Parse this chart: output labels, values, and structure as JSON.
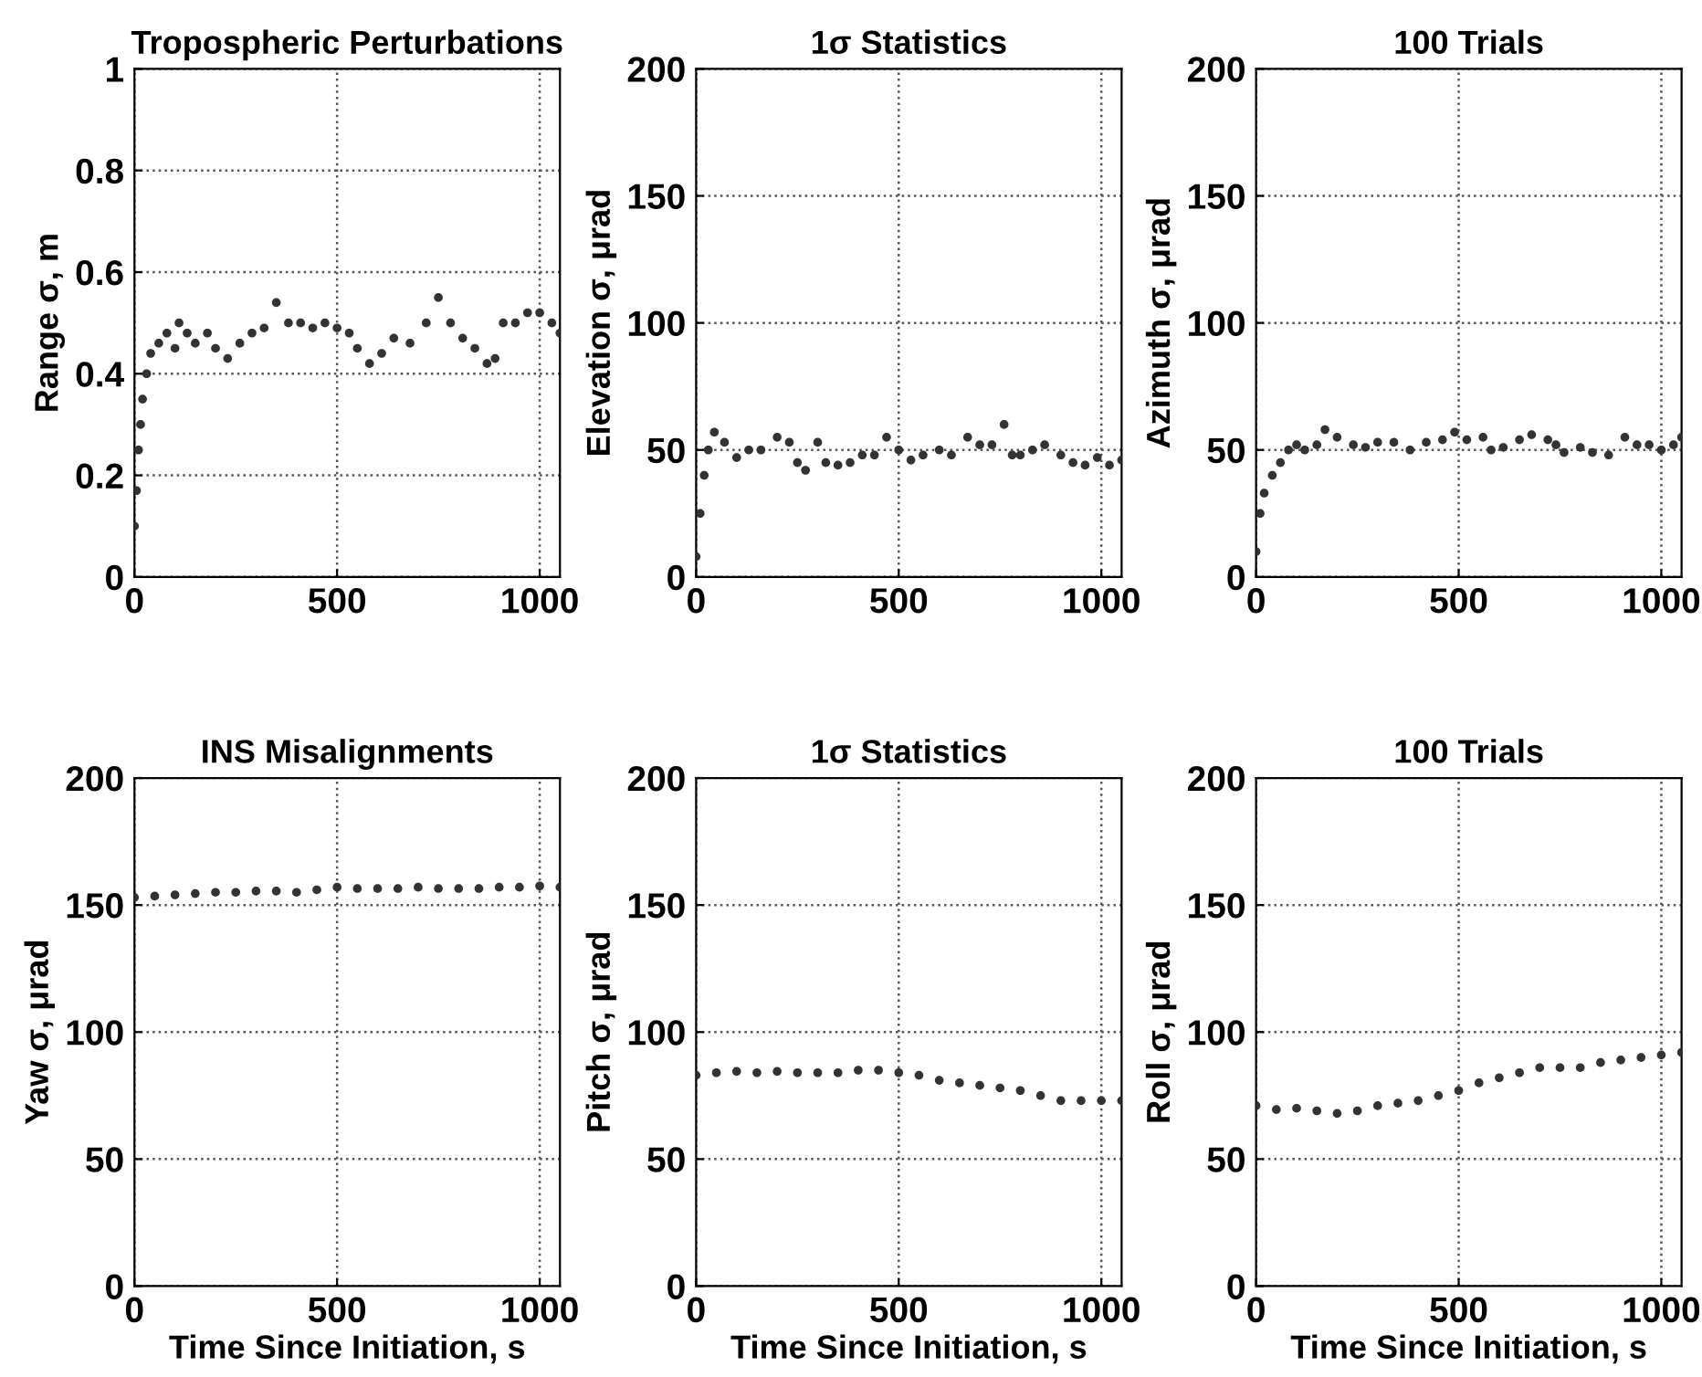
{
  "chart_data": [
    {
      "type": "scatter",
      "title": "Tropospheric Perturbations",
      "ylabel": "Range σ, m",
      "color": "#333333",
      "marker": "circle",
      "grid": true,
      "xlim": [
        0,
        1050
      ],
      "xticks": [
        0,
        500,
        1000
      ],
      "ylim": [
        0,
        1
      ],
      "yticks": [
        0,
        0.2,
        0.4,
        0.6,
        0.8,
        1
      ],
      "x": [
        0,
        5,
        10,
        15,
        20,
        30,
        40,
        60,
        80,
        100,
        110,
        130,
        150,
        180,
        200,
        230,
        260,
        290,
        320,
        350,
        380,
        410,
        440,
        470,
        500,
        530,
        550,
        580,
        610,
        640,
        680,
        720,
        750,
        780,
        810,
        840,
        870,
        890,
        910,
        940,
        970,
        1000,
        1030,
        1050
      ],
      "values": [
        0.1,
        0.17,
        0.25,
        0.3,
        0.35,
        0.4,
        0.44,
        0.46,
        0.48,
        0.45,
        0.5,
        0.48,
        0.46,
        0.48,
        0.45,
        0.43,
        0.46,
        0.48,
        0.49,
        0.54,
        0.5,
        0.5,
        0.49,
        0.5,
        0.49,
        0.48,
        0.45,
        0.42,
        0.44,
        0.47,
        0.46,
        0.5,
        0.55,
        0.5,
        0.47,
        0.45,
        0.42,
        0.43,
        0.5,
        0.5,
        0.52,
        0.52,
        0.5,
        0.48
      ]
    },
    {
      "type": "scatter",
      "title": "1σ Statistics",
      "ylabel": "Elevation σ, μrad",
      "color": "#333333",
      "marker": "circle",
      "grid": true,
      "xlim": [
        0,
        1050
      ],
      "xticks": [
        0,
        500,
        1000
      ],
      "ylim": [
        0,
        200
      ],
      "yticks": [
        0,
        50,
        100,
        150,
        200
      ],
      "x": [
        0,
        10,
        20,
        30,
        45,
        70,
        100,
        130,
        160,
        200,
        230,
        250,
        270,
        300,
        320,
        350,
        380,
        410,
        440,
        470,
        500,
        530,
        560,
        600,
        630,
        670,
        700,
        730,
        760,
        780,
        800,
        830,
        860,
        900,
        930,
        960,
        990,
        1020,
        1050
      ],
      "values": [
        8,
        25,
        40,
        50,
        57,
        53,
        47,
        50,
        50,
        55,
        53,
        45,
        42,
        53,
        45,
        44,
        45,
        48,
        48,
        55,
        50,
        46,
        48,
        50,
        48,
        55,
        52,
        52,
        60,
        48,
        48,
        50,
        52,
        48,
        45,
        44,
        47,
        44,
        46
      ]
    },
    {
      "type": "scatter",
      "title": "100 Trials",
      "ylabel": "Azimuth σ, μrad",
      "color": "#333333",
      "marker": "circle",
      "grid": true,
      "xlim": [
        0,
        1050
      ],
      "xticks": [
        0,
        500,
        1000
      ],
      "ylim": [
        0,
        200
      ],
      "yticks": [
        0,
        50,
        100,
        150,
        200
      ],
      "x": [
        0,
        10,
        20,
        40,
        60,
        80,
        100,
        120,
        150,
        170,
        200,
        240,
        270,
        300,
        340,
        380,
        420,
        460,
        490,
        520,
        560,
        580,
        610,
        650,
        680,
        720,
        740,
        760,
        800,
        830,
        870,
        910,
        940,
        970,
        1000,
        1030,
        1050
      ],
      "values": [
        10,
        25,
        33,
        40,
        45,
        50,
        52,
        50,
        52,
        58,
        55,
        52,
        51,
        53,
        53,
        50,
        53,
        54,
        57,
        54,
        55,
        50,
        51,
        54,
        56,
        54,
        52,
        49,
        51,
        49,
        48,
        55,
        52,
        52,
        50,
        52,
        55
      ]
    },
    {
      "type": "scatter",
      "title": "INS Misalignments",
      "ylabel": "Yaw σ, μrad",
      "xlabel": "Time Since Initiation, s",
      "color": "#333333",
      "marker": "circle",
      "grid": true,
      "xlim": [
        0,
        1050
      ],
      "xticks": [
        0,
        500,
        1000
      ],
      "ylim": [
        0,
        200
      ],
      "yticks": [
        0,
        50,
        100,
        150,
        200
      ],
      "x": [
        0,
        50,
        100,
        150,
        200,
        250,
        300,
        350,
        400,
        450,
        500,
        550,
        600,
        650,
        700,
        750,
        800,
        850,
        900,
        950,
        1000,
        1050
      ],
      "values": [
        153,
        153.5,
        154,
        154.5,
        155,
        155,
        155.5,
        155.5,
        155,
        156,
        157,
        156.5,
        156.5,
        156.5,
        157,
        156.5,
        156.5,
        156.5,
        157,
        157,
        157.5,
        157
      ]
    },
    {
      "type": "scatter",
      "title": "1σ Statistics",
      "ylabel": "Pitch σ, μrad",
      "xlabel": "Time Since Initiation, s",
      "color": "#333333",
      "marker": "circle",
      "grid": true,
      "xlim": [
        0,
        1050
      ],
      "xticks": [
        0,
        500,
        1000
      ],
      "ylim": [
        0,
        200
      ],
      "yticks": [
        0,
        50,
        100,
        150,
        200
      ],
      "x": [
        0,
        50,
        100,
        150,
        200,
        250,
        300,
        350,
        400,
        450,
        500,
        550,
        600,
        650,
        700,
        750,
        800,
        850,
        900,
        950,
        1000,
        1050
      ],
      "values": [
        83,
        84,
        84.5,
        84,
        84.5,
        84,
        84,
        84,
        85,
        85,
        84,
        83,
        81,
        80,
        79,
        78,
        77,
        75,
        73,
        73,
        73,
        73
      ]
    },
    {
      "type": "scatter",
      "title": "100 Trials",
      "ylabel": "Roll σ, μrad",
      "xlabel": "Time Since Initiation, s",
      "color": "#333333",
      "marker": "circle",
      "grid": true,
      "xlim": [
        0,
        1050
      ],
      "xticks": [
        0,
        500,
        1000
      ],
      "ylim": [
        0,
        200
      ],
      "yticks": [
        0,
        50,
        100,
        150,
        200
      ],
      "x": [
        0,
        50,
        100,
        150,
        200,
        250,
        300,
        350,
        400,
        450,
        500,
        550,
        600,
        650,
        700,
        750,
        800,
        850,
        900,
        950,
        1000,
        1050
      ],
      "values": [
        71,
        69.5,
        70,
        69,
        68,
        69,
        71,
        72,
        73,
        75,
        77,
        80,
        82,
        84,
        86,
        86,
        86,
        88,
        89,
        90,
        91,
        92
      ]
    }
  ]
}
